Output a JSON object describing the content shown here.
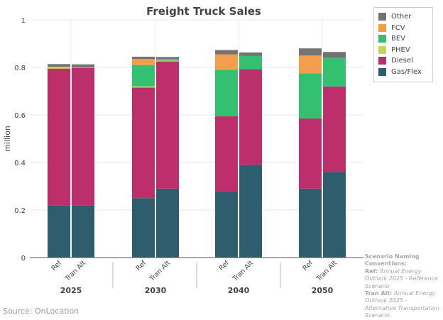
{
  "chart_data": {
    "type": "bar",
    "title": "Freight Truck Sales",
    "ylabel": "million",
    "xlabel": "",
    "ylim": [
      0,
      1
    ],
    "yticks": [
      "0",
      "0.2",
      "0.4",
      "0.6",
      "0.8",
      "1"
    ],
    "grid": true,
    "legend_position": "top-right",
    "groups": [
      "2025",
      "2030",
      "2040",
      "2050"
    ],
    "scenarios": [
      "Ref",
      "Tran Alt"
    ],
    "series": [
      {
        "name": "Gas/Flex",
        "color": "#2e5e6e",
        "values": [
          [
            0.22,
            0.22
          ],
          [
            0.25,
            0.29
          ],
          [
            0.28,
            0.39
          ],
          [
            0.29,
            0.36
          ]
        ]
      },
      {
        "name": "Diesel",
        "color": "#bd2f6b",
        "values": [
          [
            0.575,
            0.578
          ],
          [
            0.465,
            0.535
          ],
          [
            0.315,
            0.403
          ],
          [
            0.295,
            0.36
          ]
        ]
      },
      {
        "name": "PHEV",
        "color": "#c9d655",
        "values": [
          [
            0.007,
            0.001
          ],
          [
            0.005,
            0.003
          ],
          [
            0.0,
            0.0
          ],
          [
            0.0,
            0.0
          ]
        ]
      },
      {
        "name": "BEV",
        "color": "#33c070",
        "values": [
          [
            0.001,
            0.001
          ],
          [
            0.09,
            0.003
          ],
          [
            0.195,
            0.055
          ],
          [
            0.19,
            0.12
          ]
        ]
      },
      {
        "name": "FCV",
        "color": "#f49d4b",
        "values": [
          [
            0.0,
            0.0
          ],
          [
            0.025,
            0.003
          ],
          [
            0.065,
            0.0
          ],
          [
            0.075,
            0.0
          ]
        ]
      },
      {
        "name": "Other",
        "color": "#737373",
        "values": [
          [
            0.011,
            0.013
          ],
          [
            0.01,
            0.01
          ],
          [
            0.018,
            0.015
          ],
          [
            0.03,
            0.025
          ]
        ]
      }
    ]
  },
  "notes": {
    "heading": "Scenario Naming Conventions:",
    "ref_label": "Ref:",
    "ref_text": "Annual Energy Outlook 2025 - Reference Scenario",
    "alt_label": "Tran Alt:",
    "alt_text": "Annual Energy Outlook 2025 - Alternative Transportation Scenario"
  },
  "source": "Source: OnLocation"
}
